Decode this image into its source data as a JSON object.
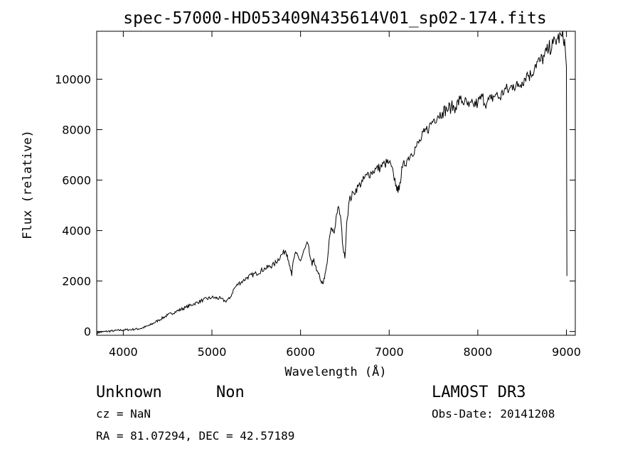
{
  "chart_data": {
    "type": "line",
    "title": "spec-57000-HD053409N435614V01_sp02-174.fits",
    "xlabel": "Wavelength (Å)",
    "ylabel": "Flux (relative)",
    "xlim": [
      3700,
      9100
    ],
    "ylim": [
      -150,
      11900
    ],
    "x_ticks": [
      4000,
      5000,
      6000,
      7000,
      8000,
      9000
    ],
    "y_ticks": [
      0,
      2000,
      4000,
      6000,
      8000,
      10000
    ],
    "grid": false,
    "series": [
      {
        "x": [
          3700,
          3800,
          3900,
          4000,
          4100,
          4200,
          4300,
          4400,
          4500,
          4600,
          4700,
          4800,
          4900,
          5000,
          5100,
          5150,
          5200,
          5250,
          5300,
          5350,
          5400,
          5500,
          5600,
          5700,
          5800,
          5830,
          5850,
          5880,
          5900,
          5920,
          5950,
          6000,
          6050,
          6080,
          6100,
          6130,
          6150,
          6180,
          6200,
          6230,
          6250,
          6270,
          6300,
          6330,
          6350,
          6380,
          6400,
          6420,
          6450,
          6480,
          6500,
          6520,
          6550,
          6600,
          6650,
          6700,
          6750,
          6800,
          6850,
          6900,
          6950,
          7000,
          7050,
          7080,
          7100,
          7120,
          7150,
          7200,
          7250,
          7300,
          7350,
          7400,
          7450,
          7500,
          7550,
          7600,
          7650,
          7700,
          7750,
          7800,
          7850,
          7900,
          7950,
          8000,
          8050,
          8100,
          8150,
          8200,
          8250,
          8300,
          8350,
          8400,
          8450,
          8500,
          8550,
          8600,
          8650,
          8700,
          8750,
          8800,
          8850,
          8900,
          8950,
          8980,
          8990,
          9000,
          9005
        ],
        "y": [
          -50,
          0,
          30,
          60,
          80,
          120,
          250,
          450,
          650,
          800,
          950,
          1100,
          1250,
          1350,
          1300,
          1200,
          1300,
          1700,
          1900,
          2000,
          2150,
          2300,
          2500,
          2650,
          3100,
          3200,
          3050,
          2600,
          2200,
          2850,
          3100,
          2800,
          3300,
          3500,
          3100,
          2600,
          2900,
          2400,
          2300,
          2000,
          1900,
          2100,
          2700,
          3800,
          4100,
          3900,
          4500,
          4900,
          4600,
          3300,
          2900,
          4300,
          5200,
          5500,
          5750,
          5950,
          6200,
          6300,
          6450,
          6500,
          6650,
          6700,
          6200,
          5800,
          5500,
          5900,
          6500,
          6800,
          7050,
          7300,
          7550,
          7900,
          8100,
          8400,
          8550,
          8700,
          8800,
          8900,
          8900,
          9200,
          9100,
          8900,
          9000,
          9050,
          9300,
          9050,
          9200,
          9400,
          9250,
          9600,
          9550,
          9800,
          9700,
          9900,
          10200,
          10150,
          10600,
          10700,
          10900,
          11200,
          11400,
          11600,
          11700,
          11600,
          11000,
          10500,
          2200
        ]
      }
    ]
  },
  "footer": {
    "object_class": "Unknown",
    "subclass": "Non",
    "survey": "LAMOST DR3",
    "cz": "cz = NaN",
    "obs_date": "Obs-Date: 20141208",
    "radec": "RA =  81.07294, DEC =  42.57189"
  }
}
